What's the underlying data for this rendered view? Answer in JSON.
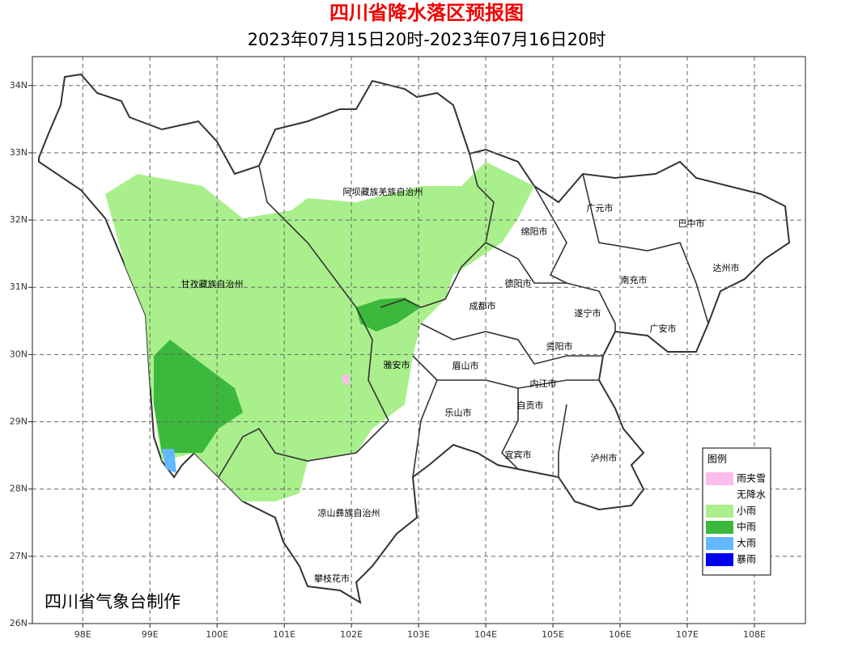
{
  "header": {
    "title": "四川省降水落区预报图",
    "subtitle": "2023年07月15日20时-2023年07月16日20时"
  },
  "credit": "四川省气象台制作",
  "map": {
    "xlim": [
      97.25,
      108.76
    ],
    "ylim": [
      26,
      34.43
    ],
    "xticks": [
      {
        "value": 98,
        "label": "98E"
      },
      {
        "value": 99,
        "label": "99E"
      },
      {
        "value": 100,
        "label": "100E"
      },
      {
        "value": 101,
        "label": "101E"
      },
      {
        "value": 102,
        "label": "102E"
      },
      {
        "value": 103,
        "label": "103E"
      },
      {
        "value": 104,
        "label": "104E"
      },
      {
        "value": 105,
        "label": "105E"
      },
      {
        "value": 106,
        "label": "106E"
      },
      {
        "value": 107,
        "label": "107E"
      },
      {
        "value": 108,
        "label": "108E"
      }
    ],
    "yticks": [
      {
        "value": 26,
        "label": "26N"
      },
      {
        "value": 27,
        "label": "27N"
      },
      {
        "value": 28,
        "label": "28N"
      },
      {
        "value": 29,
        "label": "29N"
      },
      {
        "value": 30,
        "label": "30N"
      },
      {
        "value": 31,
        "label": "31N"
      },
      {
        "value": 32,
        "label": "32N"
      },
      {
        "value": 33,
        "label": "33N"
      },
      {
        "value": 34,
        "label": "34N"
      }
    ],
    "grid": true,
    "regions": [
      "阿坝藏族羌族自治州",
      "甘孜藏族自治州",
      "广元市",
      "巴中市",
      "绵阳市",
      "达州市",
      "德阳市",
      "南充市",
      "成都市",
      "遂宁市",
      "广安市",
      "资阳市",
      "雅安市",
      "眉山市",
      "内江市",
      "自贡市",
      "乐山市",
      "宜宾市",
      "泸州市",
      "凉山彝族自治州",
      "攀枝花市"
    ]
  },
  "legend": {
    "title": "图例",
    "items": [
      {
        "label": "雨夹雪",
        "color": "#fcbcec"
      },
      {
        "label": "无降水",
        "color": "#ffffff"
      },
      {
        "label": "小雨",
        "color": "#a9f08c"
      },
      {
        "label": "中雨",
        "color": "#3cb93c"
      },
      {
        "label": "大雨",
        "color": "#63b8ff"
      },
      {
        "label": "暴雨",
        "color": "#0000f0"
      }
    ]
  }
}
